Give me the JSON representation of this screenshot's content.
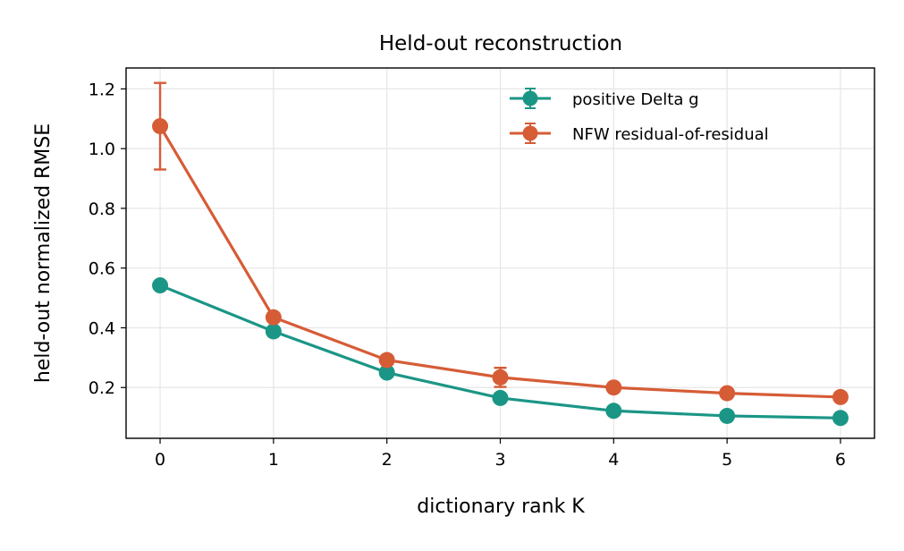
{
  "chart_data": {
    "type": "line",
    "title": "Held-out reconstruction",
    "xlabel": "dictionary rank K",
    "ylabel": "held-out normalized RMSE",
    "x": [
      0,
      1,
      2,
      3,
      4,
      5,
      6
    ],
    "xlim": [
      -0.3,
      6.3
    ],
    "ylim": [
      0.03,
      1.27
    ],
    "xticks": [
      0,
      1,
      2,
      3,
      4,
      5,
      6
    ],
    "yticks": [
      0.2,
      0.4,
      0.6,
      0.8,
      1.0,
      1.2
    ],
    "ytick_labels": [
      "0.2",
      "0.4",
      "0.6",
      "0.8",
      "1.0",
      "1.2"
    ],
    "grid": true,
    "legend_position": "top-right",
    "series": [
      {
        "name": "positive Delta g",
        "color": "#1b9686",
        "values": [
          0.542,
          0.388,
          0.25,
          0.165,
          0.122,
          0.105,
          0.098
        ],
        "errors": [
          0.0,
          0.0,
          0.0,
          0.0,
          0.0,
          0.0,
          0.0
        ]
      },
      {
        "name": "NFW residual-of-residual",
        "color": "#d65c36",
        "values": [
          1.075,
          0.435,
          0.292,
          0.234,
          0.2,
          0.181,
          0.168
        ],
        "errors": [
          0.145,
          0.0,
          0.0,
          0.032,
          0.0,
          0.0,
          0.0
        ]
      }
    ]
  }
}
